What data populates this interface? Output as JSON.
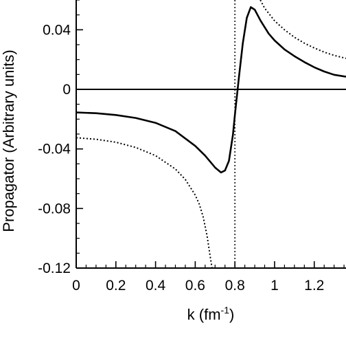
{
  "chart_data": {
    "type": "line",
    "xlabel_base": "k (fm",
    "xlabel_sup": "-1",
    "xlabel_end": ")",
    "ylabel": "Propagator (Arbitrary units)",
    "xlim": [
      0,
      1.36
    ],
    "ylim": [
      -0.12,
      0.06
    ],
    "x_ticks": [
      {
        "value": 0,
        "label": "0"
      },
      {
        "value": 0.2,
        "label": "0.2"
      },
      {
        "value": 0.4,
        "label": "0.4"
      },
      {
        "value": 0.6,
        "label": "0.6"
      },
      {
        "value": 0.8,
        "label": "0.8"
      },
      {
        "value": 1.0,
        "label": "1"
      },
      {
        "value": 1.2,
        "label": "1.2"
      }
    ],
    "y_ticks": [
      {
        "value": 0.04,
        "label": "0.04"
      },
      {
        "value": 0,
        "label": "0"
      },
      {
        "value": -0.04,
        "label": "-0.04"
      },
      {
        "value": -0.08,
        "label": "-0.08"
      },
      {
        "value": -0.12,
        "label": "-0.12"
      }
    ],
    "x_minor_step": 0.05,
    "y_minor_step": 0.01,
    "reference_lines": [
      {
        "orientation": "horizontal",
        "value": 0,
        "style": "solid"
      },
      {
        "orientation": "vertical",
        "value": 0.8,
        "style": "dotted"
      }
    ],
    "series": [
      {
        "style": "solid",
        "points": [
          [
            0.0,
            -0.0155
          ],
          [
            0.1,
            -0.016
          ],
          [
            0.2,
            -0.0172
          ],
          [
            0.3,
            -0.0192
          ],
          [
            0.4,
            -0.0225
          ],
          [
            0.5,
            -0.028
          ],
          [
            0.6,
            -0.038
          ],
          [
            0.65,
            -0.0445
          ],
          [
            0.7,
            -0.0525
          ],
          [
            0.73,
            -0.0558
          ],
          [
            0.75,
            -0.0545
          ],
          [
            0.77,
            -0.048
          ],
          [
            0.79,
            -0.0305
          ],
          [
            0.8,
            -0.017
          ],
          [
            0.82,
            0.008
          ],
          [
            0.84,
            0.031
          ],
          [
            0.86,
            0.048
          ],
          [
            0.88,
            0.0552
          ],
          [
            0.9,
            0.0535
          ],
          [
            0.93,
            0.046
          ],
          [
            0.97,
            0.0375
          ],
          [
            1.0,
            0.0328
          ],
          [
            1.05,
            0.0268
          ],
          [
            1.1,
            0.0223
          ],
          [
            1.15,
            0.0183
          ],
          [
            1.2,
            0.0148
          ],
          [
            1.25,
            0.012
          ],
          [
            1.3,
            0.0098
          ],
          [
            1.36,
            0.0085
          ]
        ]
      },
      {
        "style": "dotted",
        "points": [
          [
            0.0,
            -0.0325
          ],
          [
            0.1,
            -0.0335
          ],
          [
            0.2,
            -0.0355
          ],
          [
            0.3,
            -0.039
          ],
          [
            0.4,
            -0.0445
          ],
          [
            0.5,
            -0.0535
          ],
          [
            0.55,
            -0.0605
          ],
          [
            0.6,
            -0.071
          ],
          [
            0.62,
            -0.077
          ],
          [
            0.64,
            -0.0855
          ],
          [
            0.66,
            -0.0985
          ],
          [
            0.675,
            -0.112
          ],
          [
            0.685,
            -0.12
          ]
        ]
      },
      {
        "style": "dotted",
        "points": [
          [
            0.928,
            0.06
          ],
          [
            0.95,
            0.0545
          ],
          [
            1.0,
            0.046
          ],
          [
            1.05,
            0.04
          ],
          [
            1.1,
            0.035
          ],
          [
            1.15,
            0.031
          ],
          [
            1.2,
            0.0278
          ],
          [
            1.25,
            0.025
          ],
          [
            1.3,
            0.0228
          ],
          [
            1.36,
            0.0208
          ]
        ]
      }
    ]
  }
}
